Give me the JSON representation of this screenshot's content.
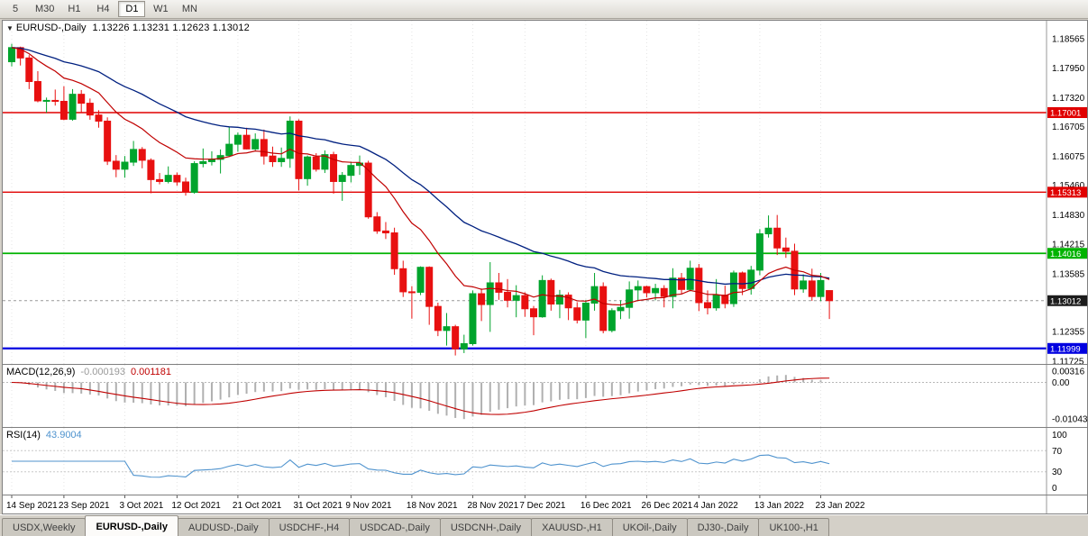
{
  "toolbar": {
    "periods": [
      "5",
      "M30",
      "H1",
      "H4",
      "D1",
      "W1",
      "MN"
    ],
    "active_period": "D1"
  },
  "chart_data": {
    "type": "candlestick",
    "symbol": "EURUSD-,Daily",
    "ohlc_text": "1.13226 1.13231 1.12623 1.13012",
    "ohlc_current": {
      "open": "1.13226",
      "high": "1.13231",
      "low": "1.12623",
      "close": "1.13012"
    },
    "ylim": [
      1.1167,
      1.1895
    ],
    "y_ticks": [
      {
        "t": "1.18565",
        "v": 1.18565
      },
      {
        "t": "1.17950",
        "v": 1.1795
      },
      {
        "t": "1.17320",
        "v": 1.1732
      },
      {
        "t": "1.16705",
        "v": 1.16705
      },
      {
        "t": "1.16075",
        "v": 1.16075
      },
      {
        "t": "1.15460",
        "v": 1.1546
      },
      {
        "t": "1.14830",
        "v": 1.1483
      },
      {
        "t": "1.14215",
        "v": 1.14215
      },
      {
        "t": "1.13585",
        "v": 1.13585
      },
      {
        "t": "1.12970",
        "v": 1.1297
      },
      {
        "t": "1.12355",
        "v": 1.12355
      },
      {
        "t": "1.11725",
        "v": 1.11725
      }
    ],
    "hlines": [
      {
        "t": "1.17001",
        "v": 1.17001,
        "color": "#e00000",
        "width": 1.4
      },
      {
        "t": "1.15313",
        "v": 1.15313,
        "color": "#e00000",
        "width": 1.4
      },
      {
        "t": "1.14016",
        "v": 1.14016,
        "color": "#00b300",
        "width": 1.8
      },
      {
        "t": "1.11999",
        "v": 1.11999,
        "color": "#0000e0",
        "width": 2.2
      }
    ],
    "current_price": {
      "label": "1.13012",
      "value": 1.13012
    },
    "date_labels": [
      {
        "t": "14 Sep 2021",
        "i": 0
      },
      {
        "t": "23 Sep 2021",
        "i": 6
      },
      {
        "t": "3 Oct 2021",
        "i": 13
      },
      {
        "t": "12 Oct 2021",
        "i": 19
      },
      {
        "t": "21 Oct 2021",
        "i": 26
      },
      {
        "t": "31 Oct 2021",
        "i": 33
      },
      {
        "t": "9 Nov 2021",
        "i": 39
      },
      {
        "t": "18 Nov 2021",
        "i": 46
      },
      {
        "t": "28 Nov 2021",
        "i": 53
      },
      {
        "t": "7 Dec 2021",
        "i": 59
      },
      {
        "t": "16 Dec 2021",
        "i": 66
      },
      {
        "t": "26 Dec 2021",
        "i": 73
      },
      {
        "t": "4 Jan 2022",
        "i": 79
      },
      {
        "t": "13 Jan 2022",
        "i": 86
      },
      {
        "t": "23 Jan 2022",
        "i": 93
      }
    ],
    "candles": [
      [
        1.1808,
        1.1846,
        1.1798,
        1.1838
      ],
      [
        1.1838,
        1.184,
        1.18,
        1.1816
      ],
      [
        1.1816,
        1.1822,
        1.175,
        1.1766
      ],
      [
        1.1766,
        1.1788,
        1.1722,
        1.1725
      ],
      [
        1.1725,
        1.1732,
        1.17,
        1.1726
      ],
      [
        1.1726,
        1.1749,
        1.1715,
        1.1724
      ],
      [
        1.1724,
        1.1756,
        1.1684,
        1.1686
      ],
      [
        1.1686,
        1.175,
        1.1683,
        1.1739
      ],
      [
        1.1739,
        1.1748,
        1.1701,
        1.172
      ],
      [
        1.172,
        1.173,
        1.1685,
        1.1695
      ],
      [
        1.1695,
        1.1705,
        1.1668,
        1.1682
      ],
      [
        1.1682,
        1.169,
        1.1589,
        1.1597
      ],
      [
        1.1597,
        1.161,
        1.1563,
        1.158
      ],
      [
        1.158,
        1.1608,
        1.1562,
        1.1595
      ],
      [
        1.1595,
        1.164,
        1.1587,
        1.1622
      ],
      [
        1.1622,
        1.1627,
        1.1582,
        1.1599
      ],
      [
        1.1599,
        1.1603,
        1.1529,
        1.1558
      ],
      [
        1.1558,
        1.1572,
        1.1548,
        1.1554
      ],
      [
        1.1554,
        1.1586,
        1.155,
        1.1567
      ],
      [
        1.1567,
        1.1573,
        1.1545,
        1.1553
      ],
      [
        1.1553,
        1.1562,
        1.1524,
        1.1531
      ],
      [
        1.1531,
        1.1597,
        1.1528,
        1.1592
      ],
      [
        1.1592,
        1.1624,
        1.1584,
        1.1596
      ],
      [
        1.1596,
        1.1618,
        1.1588,
        1.1601
      ],
      [
        1.1601,
        1.1622,
        1.1571,
        1.1609
      ],
      [
        1.1609,
        1.167,
        1.1607,
        1.1633
      ],
      [
        1.1633,
        1.1658,
        1.1617,
        1.1652
      ],
      [
        1.1652,
        1.1668,
        1.1622,
        1.1623
      ],
      [
        1.1623,
        1.1656,
        1.162,
        1.1643
      ],
      [
        1.1643,
        1.1664,
        1.159,
        1.1608
      ],
      [
        1.1608,
        1.1628,
        1.1585,
        1.1596
      ],
      [
        1.1596,
        1.1626,
        1.1585,
        1.1603
      ],
      [
        1.1603,
        1.1692,
        1.1583,
        1.1682
      ],
      [
        1.1682,
        1.1686,
        1.1535,
        1.156
      ],
      [
        1.156,
        1.1609,
        1.1545,
        1.1606
      ],
      [
        1.1606,
        1.1614,
        1.1575,
        1.158
      ],
      [
        1.158,
        1.162,
        1.1572,
        1.1611
      ],
      [
        1.1611,
        1.1617,
        1.1528,
        1.1554
      ],
      [
        1.1554,
        1.1574,
        1.1513,
        1.1567
      ],
      [
        1.1567,
        1.1596,
        1.1552,
        1.1588
      ],
      [
        1.1588,
        1.1609,
        1.1568,
        1.1593
      ],
      [
        1.1593,
        1.1598,
        1.1475,
        1.1479
      ],
      [
        1.1479,
        1.1489,
        1.1443,
        1.1449
      ],
      [
        1.1449,
        1.1468,
        1.1432,
        1.1445
      ],
      [
        1.1445,
        1.1456,
        1.1356,
        1.1369
      ],
      [
        1.1369,
        1.1386,
        1.1309,
        1.132
      ],
      [
        1.132,
        1.1332,
        1.1263,
        1.1319
      ],
      [
        1.1319,
        1.1374,
        1.1313,
        1.1372
      ],
      [
        1.1372,
        1.1374,
        1.125,
        1.1289
      ],
      [
        1.1289,
        1.1297,
        1.1226,
        1.1238
      ],
      [
        1.1238,
        1.1275,
        1.1206,
        1.1246
      ],
      [
        1.1246,
        1.125,
        1.1185,
        1.1199
      ],
      [
        1.1199,
        1.1229,
        1.119,
        1.121
      ],
      [
        1.121,
        1.1323,
        1.1206,
        1.1316
      ],
      [
        1.1316,
        1.1327,
        1.1258,
        1.1293
      ],
      [
        1.1293,
        1.1383,
        1.1235,
        1.1339
      ],
      [
        1.1339,
        1.136,
        1.1303,
        1.1319
      ],
      [
        1.1319,
        1.1347,
        1.1287,
        1.1302
      ],
      [
        1.1302,
        1.1334,
        1.1266,
        1.1312
      ],
      [
        1.1312,
        1.1319,
        1.1267,
        1.1284
      ],
      [
        1.1284,
        1.129,
        1.1228,
        1.1267
      ],
      [
        1.1267,
        1.1355,
        1.1265,
        1.1344
      ],
      [
        1.1344,
        1.1348,
        1.128,
        1.1294
      ],
      [
        1.1294,
        1.1324,
        1.1264,
        1.1313
      ],
      [
        1.1313,
        1.1319,
        1.126,
        1.1286
      ],
      [
        1.1286,
        1.1298,
        1.1253,
        1.126
      ],
      [
        1.126,
        1.1303,
        1.1222,
        1.1296
      ],
      [
        1.1296,
        1.136,
        1.128,
        1.1331
      ],
      [
        1.1331,
        1.134,
        1.1232,
        1.1238
      ],
      [
        1.1238,
        1.1285,
        1.1234,
        1.128
      ],
      [
        1.128,
        1.1302,
        1.1262,
        1.1287
      ],
      [
        1.1287,
        1.1342,
        1.1263,
        1.1324
      ],
      [
        1.1324,
        1.1344,
        1.13,
        1.1331
      ],
      [
        1.1331,
        1.1333,
        1.1308,
        1.1318
      ],
      [
        1.1318,
        1.1337,
        1.1302,
        1.1327
      ],
      [
        1.1327,
        1.1334,
        1.1287,
        1.131
      ],
      [
        1.131,
        1.137,
        1.1285,
        1.1349
      ],
      [
        1.1349,
        1.136,
        1.1316,
        1.1325
      ],
      [
        1.1325,
        1.1386,
        1.1321,
        1.137
      ],
      [
        1.137,
        1.1379,
        1.1279,
        1.1297
      ],
      [
        1.1297,
        1.1323,
        1.1272,
        1.1286
      ],
      [
        1.1286,
        1.1347,
        1.128,
        1.1313
      ],
      [
        1.1313,
        1.1333,
        1.1285,
        1.1295
      ],
      [
        1.1295,
        1.1365,
        1.1288,
        1.136
      ],
      [
        1.136,
        1.1363,
        1.1313,
        1.1327
      ],
      [
        1.1327,
        1.1375,
        1.1314,
        1.1366
      ],
      [
        1.1366,
        1.1453,
        1.1355,
        1.1443
      ],
      [
        1.1443,
        1.1482,
        1.1435,
        1.1455
      ],
      [
        1.1455,
        1.1483,
        1.1398,
        1.1413
      ],
      [
        1.1413,
        1.1435,
        1.1392,
        1.1406
      ],
      [
        1.1406,
        1.1422,
        1.1313,
        1.1326
      ],
      [
        1.1326,
        1.1357,
        1.1318,
        1.1343
      ],
      [
        1.1343,
        1.1369,
        1.1301,
        1.131
      ],
      [
        1.131,
        1.136,
        1.13,
        1.1344
      ],
      [
        1.13226,
        1.13231,
        1.12623,
        1.13012
      ]
    ],
    "indicators": {
      "macd": {
        "label": "MACD(12,26,9)",
        "value_main": "-0.000193",
        "value_signal": "0.001181",
        "y_ticks": [
          {
            "t": "0.00316",
            "v": 0.00316
          },
          {
            "t": "0.00",
            "v": 0
          },
          {
            "t": "-0.01043",
            "v": -0.01043
          }
        ],
        "ylim": [
          -0.0127,
          0.005
        ]
      },
      "rsi": {
        "label": "RSI(14)",
        "value": "43.9004",
        "y_ticks": [
          {
            "t": "100",
            "v": 100
          },
          {
            "t": "70",
            "v": 70
          },
          {
            "t": "30",
            "v": 30
          },
          {
            "t": "0",
            "v": 0
          }
        ],
        "levels": [
          70,
          30
        ],
        "ylim": [
          0,
          100
        ]
      }
    },
    "colors": {
      "up": "#00a42c",
      "down": "#e81010",
      "ma_fast": "#c00000",
      "ma_slow": "#002080",
      "macd_hist": "#b0b0b0",
      "macd_signal": "#c00000",
      "rsi_line": "#4f93ce",
      "current_tag": "#1c1c1c",
      "grid": "#e4e4e4"
    }
  },
  "tabs": [
    {
      "label": "USDX,Weekly",
      "active": false
    },
    {
      "label": "EURUSD-,Daily",
      "active": true
    },
    {
      "label": "AUDUSD-,Daily",
      "active": false
    },
    {
      "label": "USDCHF-,H4",
      "active": false
    },
    {
      "label": "USDCAD-,Daily",
      "active": false
    },
    {
      "label": "USDCNH-,Daily",
      "active": false
    },
    {
      "label": "XAUUSD-,H1",
      "active": false
    },
    {
      "label": "UKOil-,Daily",
      "active": false
    },
    {
      "label": "DJ30-,Daily",
      "active": false
    },
    {
      "label": "UK100-,H1",
      "active": false
    }
  ]
}
